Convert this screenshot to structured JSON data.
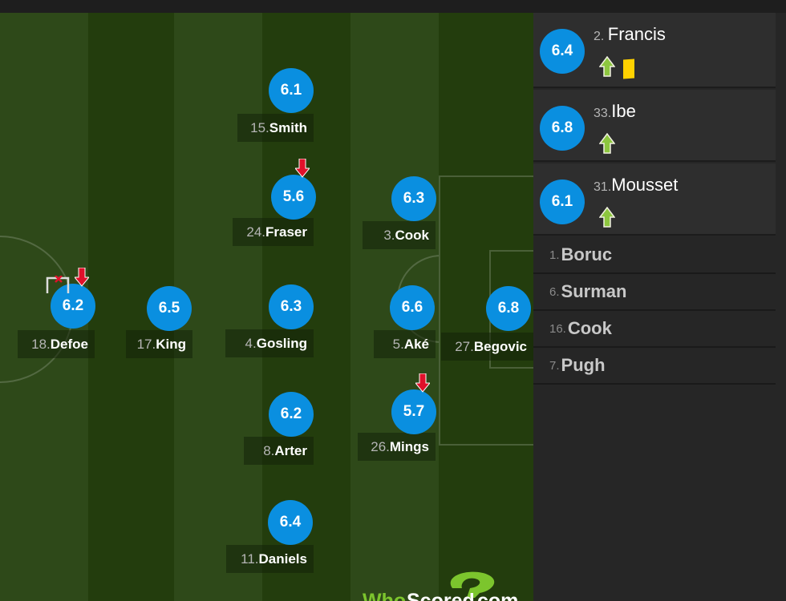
{
  "pitch": {
    "players": [
      {
        "num": "15.",
        "name": "Smith",
        "rating": "6.1",
        "events": []
      },
      {
        "num": "24.",
        "name": "Fraser",
        "rating": "5.6",
        "events": [
          "subbed-off"
        ]
      },
      {
        "num": "3. ",
        "name": "Cook",
        "rating": "6.3",
        "events": []
      },
      {
        "num": "18.",
        "name": "Defoe",
        "rating": "6.2",
        "events": [
          "missed-shot",
          "subbed-off"
        ]
      },
      {
        "num": "17.",
        "name": "King",
        "rating": "6.5",
        "events": []
      },
      {
        "num": "4. ",
        "name": "Gosling",
        "rating": "6.3",
        "events": []
      },
      {
        "num": "5. ",
        "name": "Aké",
        "rating": "6.6",
        "events": []
      },
      {
        "num": "27.",
        "name": "Begovic",
        "rating": "6.8",
        "events": []
      },
      {
        "num": "8. ",
        "name": "Arter",
        "rating": "6.2",
        "events": []
      },
      {
        "num": "26.",
        "name": "Mings",
        "rating": "5.7",
        "events": [
          "subbed-off"
        ]
      },
      {
        "num": "11.",
        "name": "Daniels",
        "rating": "6.4",
        "events": []
      }
    ],
    "logo": {
      "text_who": "Who",
      "text_scored": "Scored",
      "text_com": ".com"
    }
  },
  "sidebar": {
    "substitutes_used": [
      {
        "num": "2. ",
        "name": "Francis",
        "rating": "6.4",
        "events": [
          "subbed-on",
          "yellow-card"
        ]
      },
      {
        "num": "33.",
        "name": "Ibe",
        "rating": "6.8",
        "events": [
          "subbed-on"
        ]
      },
      {
        "num": "31.",
        "name": "Mousset",
        "rating": "6.1",
        "events": [
          "subbed-on"
        ]
      }
    ],
    "bench": [
      {
        "num": "1. ",
        "name": "Boruc"
      },
      {
        "num": "6. ",
        "name": "Surman"
      },
      {
        "num": "16.",
        "name": "Cook"
      },
      {
        "num": "7. ",
        "name": "Pugh"
      }
    ]
  },
  "colors": {
    "rating": "#0a8fe0",
    "sub_on": "#8dc63f",
    "sub_off": "#e0102a",
    "yellow_card": "#ffd200"
  }
}
